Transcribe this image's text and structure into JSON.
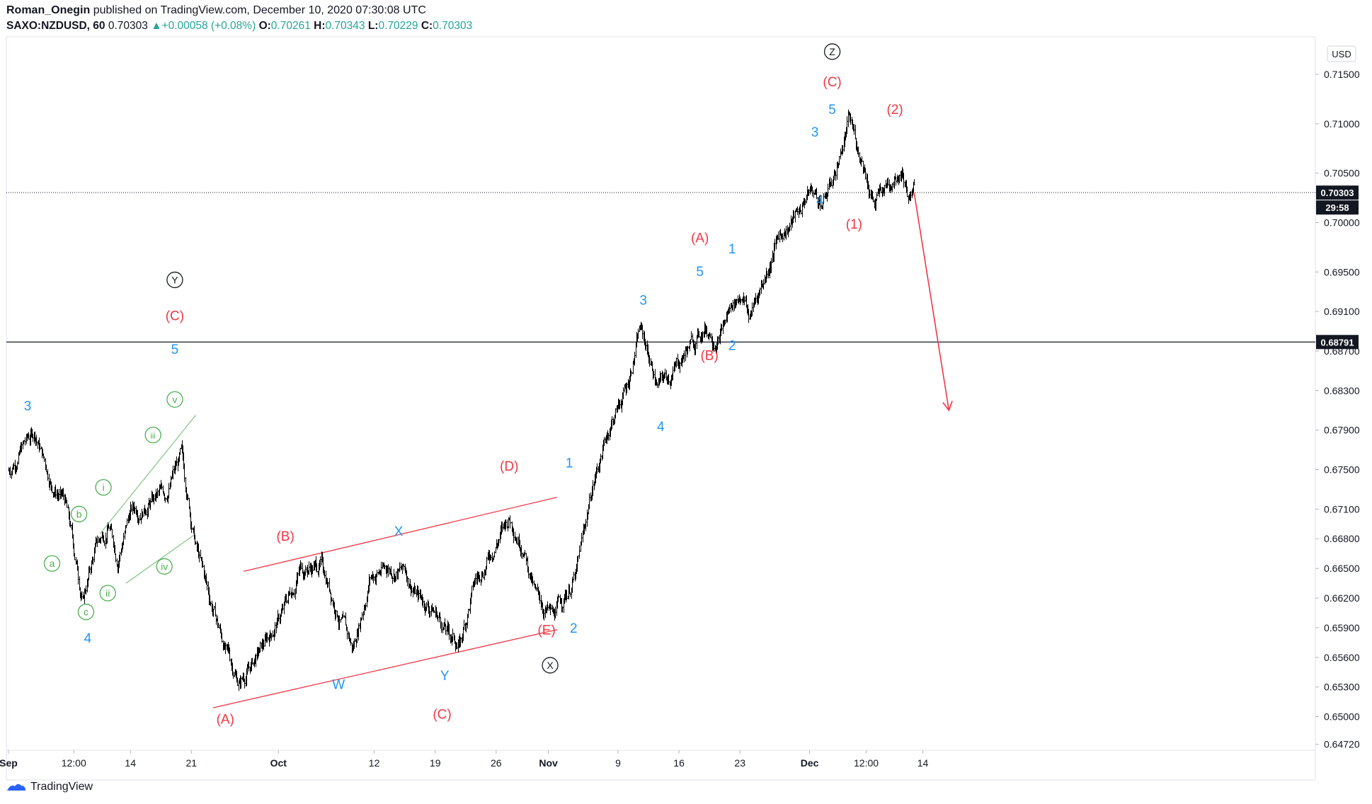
{
  "header": {
    "author": "Roman_Onegin",
    "published_text": "published on TradingView.com, December 10, 2020 07:30:08 UTC"
  },
  "quote": {
    "symbol": "SAXO:NZDUSD, 60",
    "last": "0.70303",
    "change_arrow": "▲",
    "change": "+0.00058 (+0.08%)",
    "open_label": "O:",
    "open": "0.70261",
    "high_label": "H:",
    "high": "0.70343",
    "low_label": "L:",
    "low": "0.70229",
    "close_label": "C:",
    "close": "0.70303"
  },
  "footer": {
    "brand": "TradingView",
    "logo_icon": "tradingview-logo-icon"
  },
  "colors": {
    "up": "#26a69a",
    "red": "#f23645",
    "blue": "#2196f3",
    "green": "#4caf50",
    "green_line": "#8bc98a",
    "black": "#131722",
    "grid": "#e0e3eb"
  },
  "chart_data": {
    "type": "line",
    "series_style": "ohlc-bars",
    "timeframe": "60",
    "ylim": [
      0.6466,
      0.7188
    ],
    "currency_label": "USD",
    "y_ticks": [
      "0.71500",
      "0.71000",
      "0.70500",
      "0.70000",
      "0.69500",
      "0.69100",
      "0.68700",
      "0.68300",
      "0.67900",
      "0.67500",
      "0.67100",
      "0.66800",
      "0.66500",
      "0.66200",
      "0.65900",
      "0.65600",
      "0.65300",
      "0.65000",
      "0.64720"
    ],
    "x_ticks": [
      {
        "label": "Sep",
        "day": 0
      },
      {
        "label": "12:00",
        "day": 7.5
      },
      {
        "label": "14",
        "day": 14
      },
      {
        "label": "21",
        "day": 21
      },
      {
        "label": "Oct",
        "day": 31
      },
      {
        "label": "12",
        "day": 42
      },
      {
        "label": "19",
        "day": 49
      },
      {
        "label": "26",
        "day": 56
      },
      {
        "label": "Nov",
        "day": 62
      },
      {
        "label": "9",
        "day": 70
      },
      {
        "label": "16",
        "day": 77
      },
      {
        "label": "23",
        "day": 84
      },
      {
        "label": "Dec",
        "day": 92
      },
      {
        "label": "12:00",
        "day": 98.5
      },
      {
        "label": "14",
        "day": 105
      }
    ],
    "price_path": [
      [
        0,
        0.6749
      ],
      [
        1.5,
        0.6773
      ],
      [
        3,
        0.6788
      ],
      [
        5,
        0.6735
      ],
      [
        6.5,
        0.6717
      ],
      [
        8.5,
        0.6618
      ],
      [
        10,
        0.6672
      ],
      [
        11.5,
        0.6694
      ],
      [
        12.5,
        0.6661
      ],
      [
        14,
        0.6708
      ],
      [
        16,
        0.6717
      ],
      [
        18,
        0.6726
      ],
      [
        19.8,
        0.6763
      ],
      [
        21.5,
        0.6672
      ],
      [
        23,
        0.6622
      ],
      [
        25,
        0.6565
      ],
      [
        26.5,
        0.6535
      ],
      [
        29,
        0.6567
      ],
      [
        31.5,
        0.6607
      ],
      [
        33.5,
        0.6651
      ],
      [
        36,
        0.6653
      ],
      [
        38,
        0.6601
      ],
      [
        39.5,
        0.6567
      ],
      [
        41.5,
        0.6642
      ],
      [
        43.5,
        0.6651
      ],
      [
        45.5,
        0.6647
      ],
      [
        47,
        0.6622
      ],
      [
        49,
        0.6607
      ],
      [
        50.5,
        0.6583
      ],
      [
        51.8,
        0.6572
      ],
      [
        53.5,
        0.6635
      ],
      [
        55.5,
        0.6669
      ],
      [
        57.5,
        0.6701
      ],
      [
        59,
        0.6678
      ],
      [
        60.5,
        0.6622
      ],
      [
        62.5,
        0.66
      ],
      [
        63.5,
        0.6617
      ],
      [
        65.2,
        0.6645
      ],
      [
        67,
        0.6733
      ],
      [
        69,
        0.6794
      ],
      [
        71,
        0.6834
      ],
      [
        72.5,
        0.6894
      ],
      [
        74.5,
        0.6836
      ],
      [
        76,
        0.6846
      ],
      [
        78,
        0.6873
      ],
      [
        80,
        0.6894
      ],
      [
        81.5,
        0.6884
      ],
      [
        83,
        0.6917
      ],
      [
        84.3,
        0.693
      ],
      [
        85,
        0.6904
      ],
      [
        87,
        0.695
      ],
      [
        88.5,
        0.6988
      ],
      [
        90.5,
        0.7007
      ],
      [
        92,
        0.7034
      ],
      [
        93.5,
        0.7019
      ],
      [
        95,
        0.7054
      ],
      [
        96.5,
        0.7103
      ],
      [
        98,
        0.7065
      ],
      [
        99.5,
        0.7019
      ],
      [
        101,
        0.7041
      ],
      [
        102.5,
        0.706
      ],
      [
        103.5,
        0.7025
      ],
      [
        104,
        0.703
      ]
    ],
    "current_price": {
      "label": "0.70303",
      "value": 0.70303,
      "countdown": "29:58"
    },
    "horizontal_line": {
      "label": "0.68791",
      "value": 0.68791
    },
    "red_channel": {
      "upper": [
        [
          27,
          0.6647
        ],
        [
          63,
          0.6722
        ]
      ],
      "lower": [
        [
          23.5,
          0.6509
        ],
        [
          63,
          0.6588
        ]
      ]
    },
    "green_channel": {
      "upper": [
        [
          10.5,
          0.6685
        ],
        [
          21.5,
          0.6805
        ]
      ],
      "lower": [
        [
          13.5,
          0.6635
        ],
        [
          21.5,
          0.6685
        ]
      ]
    },
    "red_arrow": {
      "from": [
        104,
        0.70303
      ],
      "to": [
        108,
        0.681
      ]
    },
    "wave_labels": [
      {
        "text": "3",
        "style": "blue",
        "day": 2.2,
        "price": 0.6815
      },
      {
        "text": "4",
        "style": "blue",
        "day": 9.1,
        "price": 0.658
      },
      {
        "text": "5",
        "style": "blue",
        "day": 19.1,
        "price": 0.6872
      },
      {
        "text": "(C)",
        "style": "red",
        "day": 19.1,
        "price": 0.6906
      },
      {
        "text": "Y",
        "style": "circle-black",
        "day": 19.1,
        "price": 0.6942
      },
      {
        "text": "a",
        "style": "circle-green",
        "day": 5.0,
        "price": 0.6655
      },
      {
        "text": "b",
        "style": "circle-green",
        "day": 8.1,
        "price": 0.6705
      },
      {
        "text": "c",
        "style": "circle-green",
        "day": 8.9,
        "price": 0.6606
      },
      {
        "text": "i",
        "style": "circle-green",
        "day": 10.9,
        "price": 0.6732
      },
      {
        "text": "ii",
        "style": "circle-green",
        "day": 11.4,
        "price": 0.6625
      },
      {
        "text": "iii",
        "style": "circle-green",
        "day": 16.6,
        "price": 0.6785
      },
      {
        "text": "iv",
        "style": "circle-green",
        "day": 17.9,
        "price": 0.6652
      },
      {
        "text": "v",
        "style": "circle-green",
        "day": 19.1,
        "price": 0.6821
      },
      {
        "text": "(A)",
        "style": "red",
        "day": 24.9,
        "price": 0.6498
      },
      {
        "text": "(B)",
        "style": "red",
        "day": 31.8,
        "price": 0.6683
      },
      {
        "text": "W",
        "style": "blue",
        "day": 37.9,
        "price": 0.6533
      },
      {
        "text": "X",
        "style": "blue",
        "day": 44.8,
        "price": 0.6688
      },
      {
        "text": "Y",
        "style": "blue",
        "day": 50.1,
        "price": 0.6542
      },
      {
        "text": "(C)",
        "style": "red",
        "day": 49.8,
        "price": 0.6503
      },
      {
        "text": "(D)",
        "style": "red",
        "day": 57.5,
        "price": 0.6754
      },
      {
        "text": "(E)",
        "style": "red",
        "day": 61.8,
        "price": 0.6588
      },
      {
        "text": "X",
        "style": "circle-black",
        "day": 62.2,
        "price": 0.6552
      },
      {
        "text": "1",
        "style": "blue",
        "day": 64.4,
        "price": 0.6757
      },
      {
        "text": "2",
        "style": "blue",
        "day": 64.9,
        "price": 0.659
      },
      {
        "text": "3",
        "style": "blue",
        "day": 72.9,
        "price": 0.6922
      },
      {
        "text": "4",
        "style": "blue",
        "day": 74.9,
        "price": 0.6794
      },
      {
        "text": "5",
        "style": "blue",
        "day": 79.4,
        "price": 0.6951
      },
      {
        "text": "(A)",
        "style": "red",
        "day": 79.4,
        "price": 0.6985
      },
      {
        "text": "(B)",
        "style": "red",
        "day": 80.5,
        "price": 0.6866
      },
      {
        "text": "1",
        "style": "blue",
        "day": 83.1,
        "price": 0.6974
      },
      {
        "text": "2",
        "style": "blue",
        "day": 83.1,
        "price": 0.6876
      },
      {
        "text": "3",
        "style": "blue",
        "day": 92.6,
        "price": 0.7092
      },
      {
        "text": "4",
        "style": "blue",
        "day": 93.2,
        "price": 0.7023
      },
      {
        "text": "5",
        "style": "blue",
        "day": 94.6,
        "price": 0.7115
      },
      {
        "text": "(C)",
        "style": "red",
        "day": 94.6,
        "price": 0.7143
      },
      {
        "text": "Z",
        "style": "circle-black",
        "day": 94.6,
        "price": 0.7173
      },
      {
        "text": "(1)",
        "style": "red",
        "day": 97.1,
        "price": 0.6999
      },
      {
        "text": "(2)",
        "style": "red",
        "day": 101.8,
        "price": 0.7115
      }
    ]
  }
}
